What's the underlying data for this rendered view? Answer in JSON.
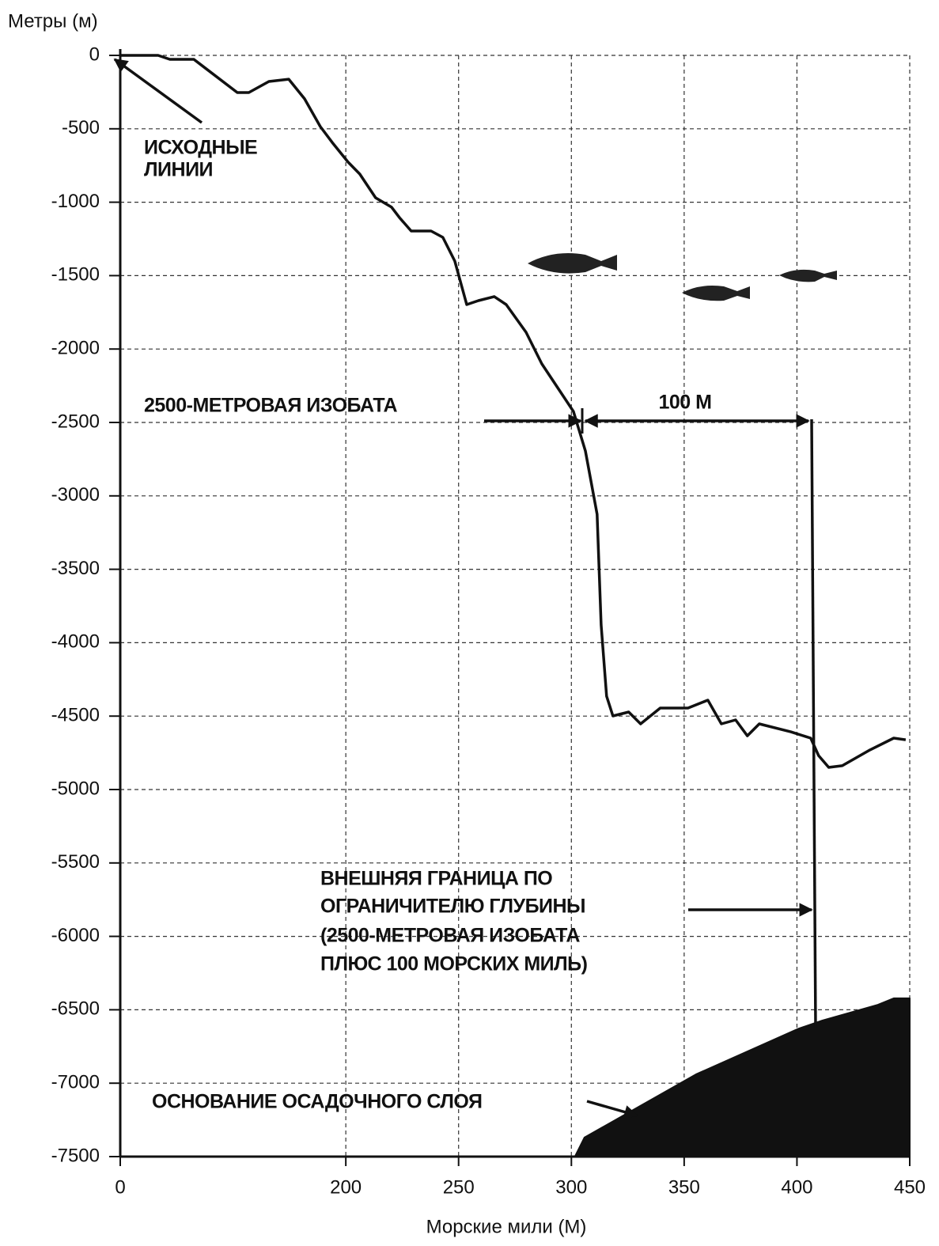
{
  "chart_data": {
    "type": "line",
    "y_label": "Метры (м)",
    "x_label": "Морские мили (М)",
    "xlim": [
      100,
      450
    ],
    "ylim": [
      -7500,
      0
    ],
    "xticks": [
      {
        "value": 100,
        "label": "0"
      },
      200,
      250,
      300,
      350,
      400,
      450
    ],
    "yticks": [
      0,
      -500,
      -1000,
      -1500,
      -2000,
      -2500,
      -3000,
      -3500,
      -4000,
      -4500,
      -5000,
      -5500,
      -6000,
      -6500,
      -7000,
      -7500
    ],
    "grid": true,
    "series": [
      {
        "color": "#111111",
        "fill": false,
        "x": [
          100,
          116.8,
          122,
          132.6,
          151.9,
          157,
          165.9,
          174.7,
          181.7,
          188.7,
          194,
          201,
          206.2,
          213.2,
          220.3,
          223.8,
          229,
          237.8,
          243,
          248.3,
          253.6,
          258.8,
          265.8,
          271.1,
          279.9,
          286.9,
          293.9,
          300.9,
          306.2,
          311.4,
          313.2,
          315.6,
          318.4,
          325.4,
          330.7,
          339.4,
          351.7,
          360.5,
          366.5,
          372.8,
          378,
          383.3,
          397.3,
          406.1,
          409.6,
          414.1,
          420.1,
          432.4,
          442.9,
          448.2
        ],
        "values": [
          0,
          0,
          -27,
          -27,
          -253,
          -253,
          -178,
          -162,
          -296,
          -485,
          -593,
          -727,
          -808,
          -970,
          -1034,
          -1105,
          -1196,
          -1196,
          -1239,
          -1401,
          -1697,
          -1670,
          -1643,
          -1697,
          -1886,
          -2101,
          -2263,
          -2425,
          -2694,
          -3125,
          -3879,
          -4364,
          -4499,
          -4472,
          -4553,
          -4445,
          -4445,
          -4391,
          -4553,
          -4526,
          -4634,
          -4553,
          -4607,
          -4650,
          -4769,
          -4849,
          -4838,
          -4730,
          -4650,
          -4661
        ]
      },
      {
        "color": "#111111",
        "fill": true,
        "x": [
          301.6,
          305.8,
          355.2,
          400.8,
          411.3,
          435.9,
          442.9,
          450
        ],
        "values": [
          -7500,
          -7370,
          -6940,
          -6628,
          -6573,
          -6466,
          -6422,
          -6422
        ]
      }
    ],
    "annotations": [
      {
        "lines": [
          "ИСХОДНЫЕ",
          "ЛИНИИ"
        ]
      },
      {
        "lines": [
          "2500-МЕТРОВАЯ ИЗОБАТА"
        ]
      },
      {
        "lines": [
          "100 M"
        ]
      },
      {
        "lines": [
          "ВНЕШНЯЯ ГРАНИЦА ПО",
          "ОГРАНИЧИТЕЛЮ ГЛУБИНЫ",
          "(2500-МЕТРОВАЯ ИЗОБАТА",
          "ПЛЮС 100 МОРСКИХ МИЛЬ)"
        ]
      },
      {
        "lines": [
          "ОСНОВАНИЕ ОСАДОЧНОГО СЛОЯ"
        ]
      }
    ]
  }
}
